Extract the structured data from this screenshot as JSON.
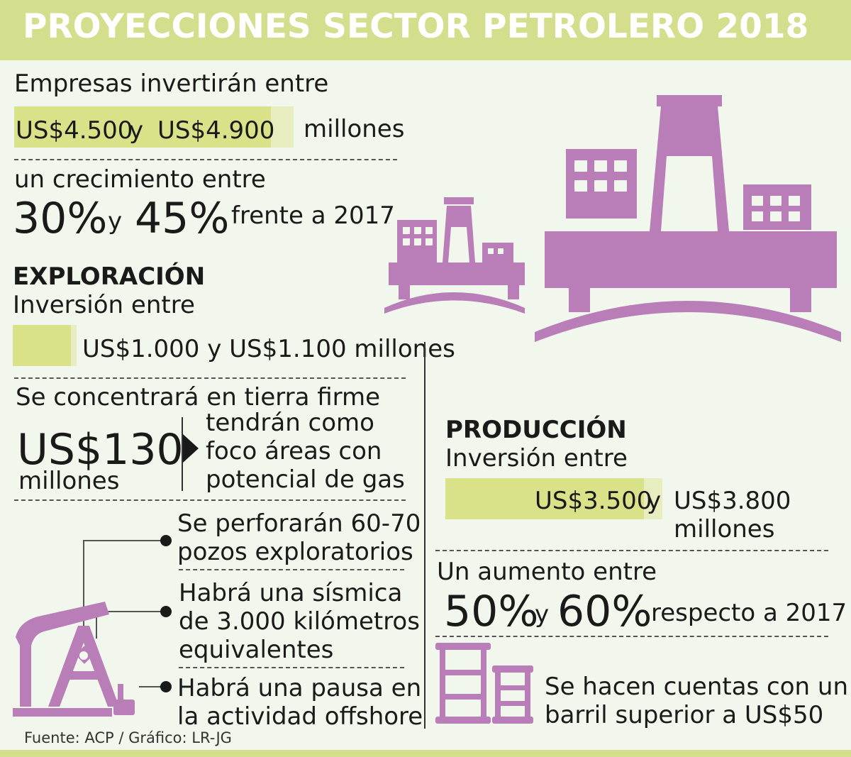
{
  "title": "PROYECCIONES SECTOR PETROLERO 2018",
  "intro": {
    "line1": "Empresas invertirán entre",
    "amount_low": "US$4.500",
    "and": "y",
    "amount_high": "US$4.900",
    "unit": "millones",
    "growth_label": "un crecimiento entre",
    "growth_low": "30%",
    "growth_and": "y",
    "growth_high": "45%",
    "growth_suffix": "frente a 2017"
  },
  "exploracion": {
    "heading": "EXPLORACIÓN",
    "label": "Inversión entre",
    "range": "US$1.000 y US$1.100 millones",
    "focus_label": "Se concentrará en tierra firme",
    "focus_amount": "US$130",
    "focus_unit": "millones",
    "focus_desc": [
      "tendrán como",
      "foco áreas con",
      "potencial de gas"
    ],
    "wells": [
      "Se perforarán 60-70",
      "pozos exploratorios"
    ],
    "seismic": [
      "Habrá una sísmica",
      "de 3.000 kilómetros",
      "equivalentes"
    ],
    "offshore": [
      "Habrá una pausa en",
      "la actividad offshore"
    ]
  },
  "produccion": {
    "heading": "PRODUCCIÓN",
    "label": "Inversión entre",
    "amount_low": "US$3.500",
    "and": "y",
    "amount_high": "US$3.800",
    "unit": "millones",
    "growth_label": "Un aumento entre",
    "growth_low": "50%",
    "growth_and": "y",
    "growth_high": "60%",
    "growth_suffix": "respecto a 2017",
    "barrel": [
      "Se hacen cuentas con un",
      "barril superior a US$50"
    ]
  },
  "source": "Fuente: ACP / Gráfico: LR-JG",
  "colors": {
    "header": "#d5de8c",
    "bar": "#d9e189",
    "icon": "#b97db7",
    "background": "#f1f7ec"
  },
  "icons": [
    "offshore-platform-icon",
    "oil-pumpjack-icon",
    "oil-barrels-icon"
  ]
}
